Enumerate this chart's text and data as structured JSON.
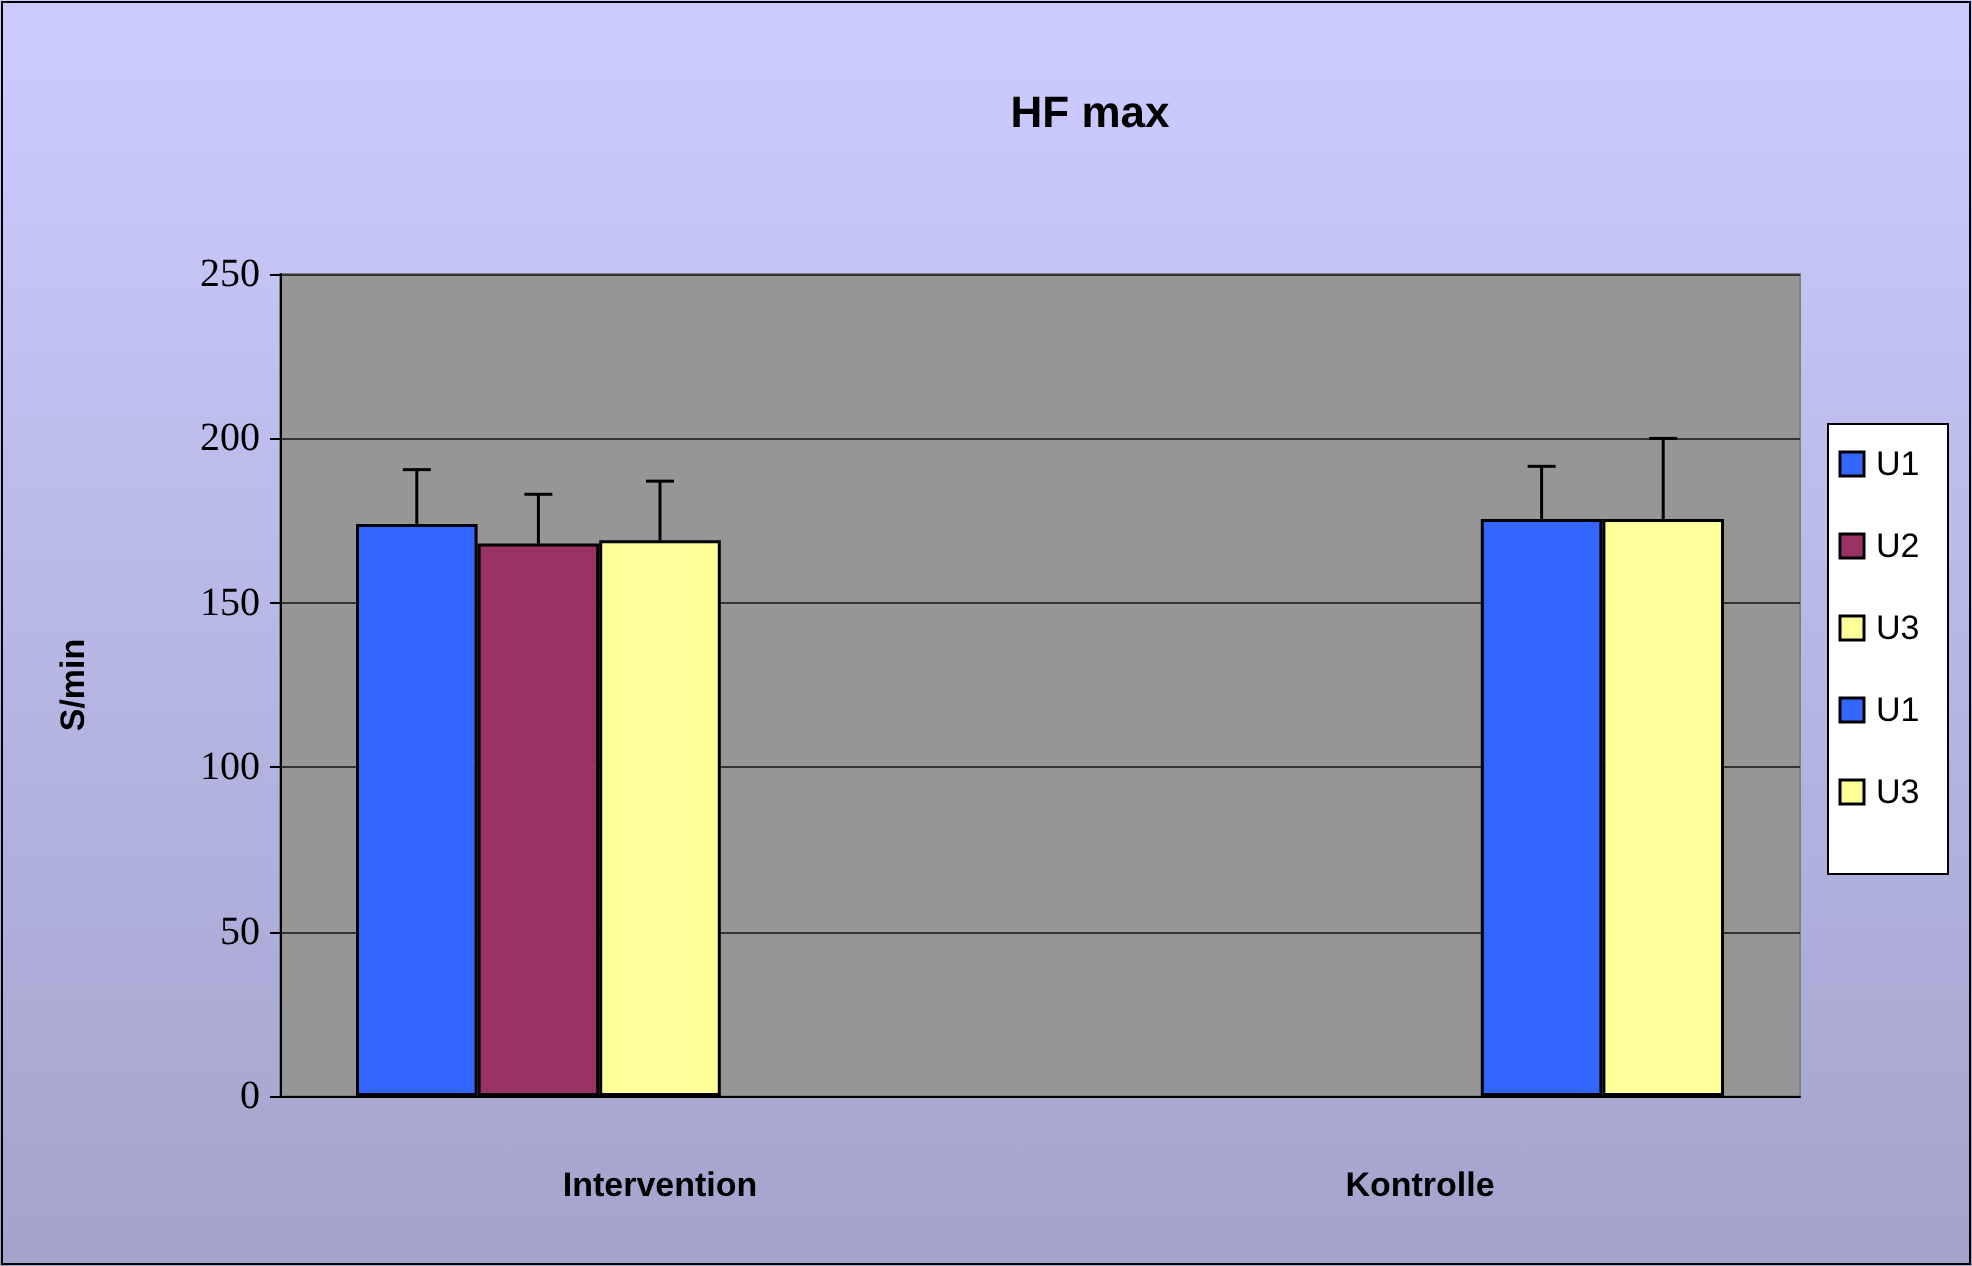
{
  "chart_data": {
    "type": "bar",
    "title": "HF max",
    "ylabel": "S/min",
    "categories": [
      "Intervention",
      "Kontrolle"
    ],
    "series": [
      {
        "name": "U1",
        "color": "#3366ff",
        "values": [
          174,
          null
        ],
        "errors": [
          [
            174,
            190.5
          ],
          null
        ]
      },
      {
        "name": "U2",
        "color": "#993366",
        "values": [
          168,
          null
        ],
        "errors": [
          [
            168,
            183
          ],
          null
        ]
      },
      {
        "name": "U3",
        "color": "#ffff99",
        "values": [
          169,
          null
        ],
        "errors": [
          [
            169,
            187
          ],
          null
        ]
      },
      {
        "name": "U1",
        "color": "#3366ff",
        "values": [
          null,
          175.5
        ],
        "errors": [
          null,
          [
            175.5,
            191.5
          ]
        ]
      },
      {
        "name": "U3",
        "color": "#ffff99",
        "values": [
          null,
          175.5
        ],
        "errors": [
          null,
          [
            175.5,
            200
          ]
        ]
      }
    ],
    "ylim": [
      0,
      250
    ],
    "yticks": [
      0,
      50,
      100,
      150,
      200,
      250
    ],
    "grid": "y",
    "legend": "right"
  }
}
